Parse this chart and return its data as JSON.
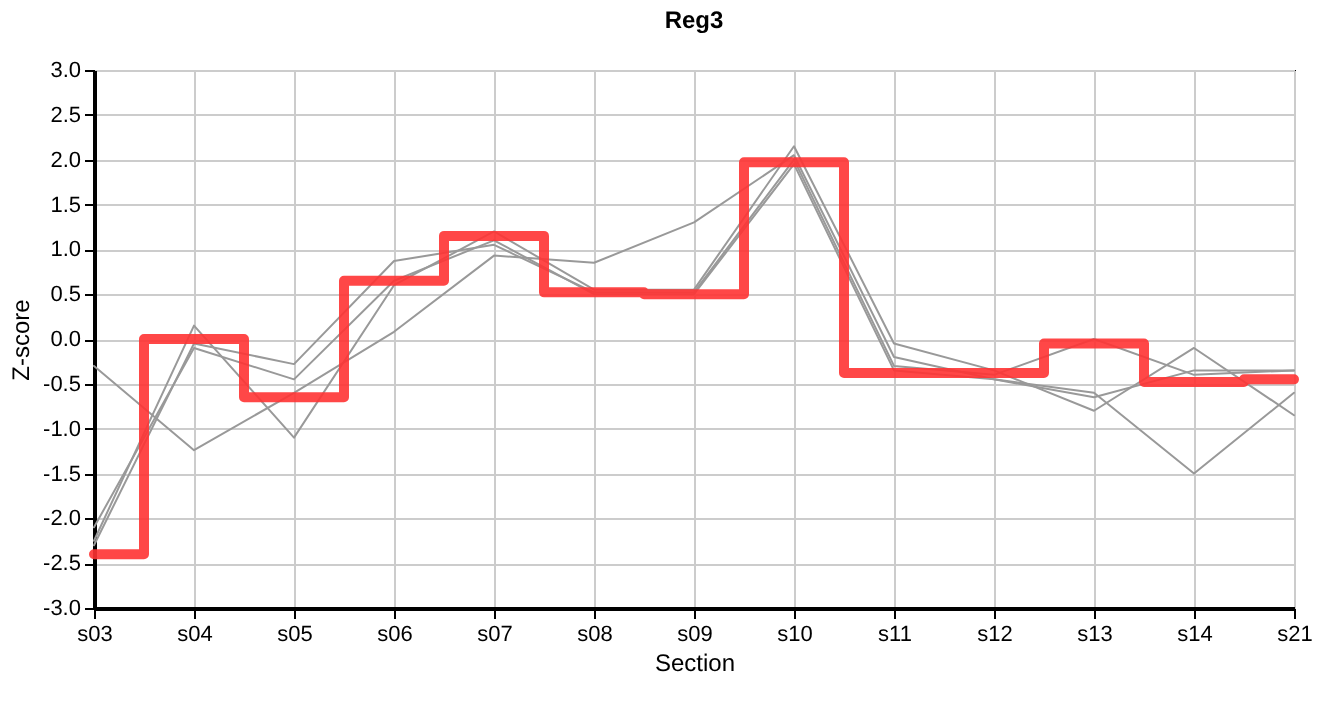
{
  "chart_data": {
    "type": "line",
    "title": "Reg3",
    "xlabel": "Section",
    "ylabel": "Z-score",
    "categories": [
      "s03",
      "s04",
      "s05",
      "s06",
      "s07",
      "s08",
      "s09",
      "s10",
      "s11",
      "s12",
      "s13",
      "s14",
      "s21"
    ],
    "series": [
      {
        "type": "line",
        "color": "#999999",
        "values": [
          -2.25,
          0.15,
          -1.1,
          0.6,
          1.2,
          0.55,
          0.55,
          2.15,
          -0.05,
          -0.35,
          -0.8,
          -0.1,
          -0.85
        ]
      },
      {
        "type": "line",
        "color": "#999999",
        "values": [
          -0.3,
          -1.24,
          -0.6,
          0.08,
          0.93,
          0.85,
          1.3,
          2.05,
          -0.2,
          -0.45,
          -0.6,
          -1.5,
          -0.6
        ]
      },
      {
        "type": "line",
        "color": "#999999",
        "values": [
          -2.3,
          -0.05,
          -0.28,
          0.87,
          1.05,
          0.52,
          0.52,
          2.0,
          -0.3,
          -0.4,
          0.0,
          -0.4,
          -0.35
        ]
      },
      {
        "type": "line",
        "color": "#999999",
        "values": [
          -2.1,
          -0.1,
          -0.45,
          0.65,
          1.1,
          0.5,
          0.5,
          1.95,
          -0.35,
          -0.45,
          -0.65,
          -0.35,
          -0.35
        ]
      },
      {
        "type": "step",
        "color": "#ff3333",
        "values": [
          -2.4,
          0.0,
          -0.65,
          0.65,
          1.15,
          0.52,
          0.5,
          1.97,
          -0.38,
          -0.38,
          -0.05,
          -0.48,
          -0.45
        ]
      }
    ],
    "ylim": [
      -3,
      3
    ],
    "yticks": [
      {
        "value": -3,
        "label": "-3.0"
      },
      {
        "value": -2.5,
        "label": "-2.5"
      },
      {
        "value": -2,
        "label": "-2.0"
      },
      {
        "value": -1.5,
        "label": "-1.5"
      },
      {
        "value": -1,
        "label": "-1.0"
      },
      {
        "value": -0.5,
        "label": "-0.5"
      },
      {
        "value": 0,
        "label": "0.0"
      },
      {
        "value": 0.5,
        "label": "0.5"
      },
      {
        "value": 1,
        "label": "1.0"
      },
      {
        "value": 1.5,
        "label": "1.5"
      },
      {
        "value": 2,
        "label": "2.0"
      },
      {
        "value": 2.5,
        "label": "2.5"
      },
      {
        "value": 3,
        "label": "3.0"
      }
    ],
    "grid": true,
    "marker": "none",
    "line_style": "solid"
  }
}
